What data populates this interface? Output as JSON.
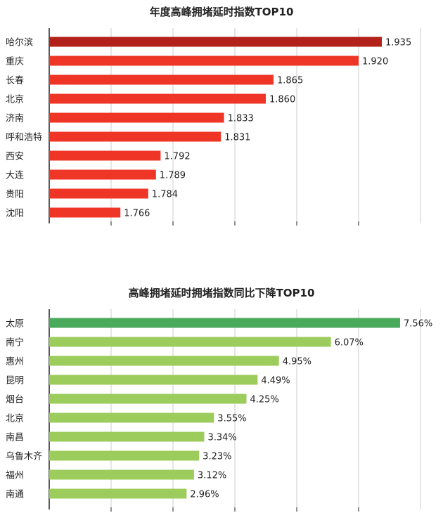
{
  "chart_data": [
    {
      "type": "bar",
      "orientation": "horizontal",
      "title": "年度高峰拥堵延时指数TOP10",
      "categories": [
        "哈尔滨",
        "重庆",
        "长春",
        "北京",
        "济南",
        "呼和浩特",
        "西安",
        "大连",
        "贵阳",
        "沈阳"
      ],
      "values": [
        1.935,
        1.92,
        1.865,
        1.86,
        1.833,
        1.831,
        1.792,
        1.789,
        1.784,
        1.766
      ],
      "value_labels": [
        "1.935",
        "1.920",
        "1.865",
        "1.860",
        "1.833",
        "1.831",
        "1.792",
        "1.789",
        "1.784",
        "1.766"
      ],
      "xlim": [
        1.72,
        1.96
      ],
      "grid": true,
      "colors": {
        "highlight": "#b3221a",
        "bar": "#ee3526",
        "grid": "#cccccc",
        "axis": "#222222"
      }
    },
    {
      "type": "bar",
      "orientation": "horizontal",
      "title": "高峰拥堵延时拥堵指数同比下降TOP10",
      "categories": [
        "太原",
        "南宁",
        "惠州",
        "昆明",
        "烟台",
        "北京",
        "南昌",
        "乌鲁木齐",
        "福州",
        "南通"
      ],
      "values": [
        7.56,
        6.07,
        4.95,
        4.49,
        4.25,
        3.55,
        3.34,
        3.23,
        3.12,
        2.96
      ],
      "value_labels": [
        "7.56%",
        "6.07%",
        "4.95%",
        "4.49%",
        "4.25%",
        "3.55%",
        "3.34%",
        "3.23%",
        "3.12%",
        "2.96%"
      ],
      "xlim": [
        0,
        8
      ],
      "grid": true,
      "colors": {
        "highlight": "#4aaa5b",
        "bar": "#9ccc5c",
        "grid": "#cccccc",
        "axis": "#222222"
      }
    }
  ]
}
